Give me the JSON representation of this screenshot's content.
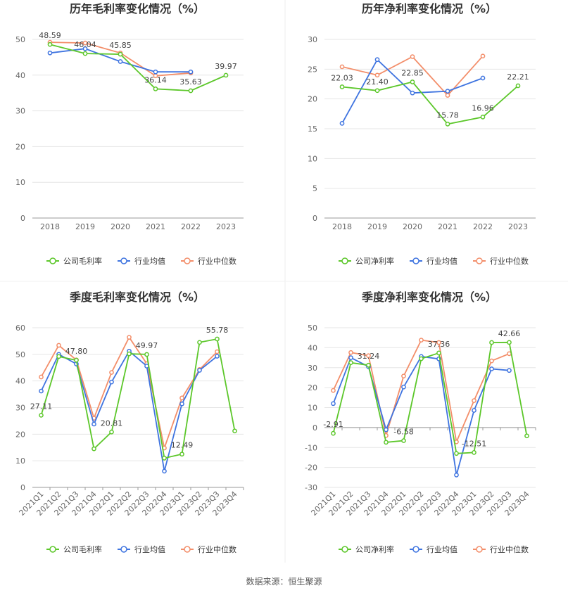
{
  "source": "数据来源：恒生聚源",
  "colors": {
    "company": "#5cc72a",
    "avg": "#3f74e0",
    "median": "#f38e6a",
    "grid": "#e6e6e6",
    "axis": "#cccccc"
  },
  "chart_data": [
    {
      "type": "line",
      "title": "历年毛利率变化情况（%）",
      "categories": [
        "2018",
        "2019",
        "2020",
        "2021",
        "2022",
        "2023"
      ],
      "ylim": [
        0,
        50
      ],
      "yticks": [
        0,
        10,
        20,
        30,
        40,
        50
      ],
      "series": [
        {
          "name": "公司毛利率",
          "color_key": "company",
          "values": [
            48.59,
            46.04,
            45.85,
            36.14,
            35.63,
            39.97
          ]
        },
        {
          "name": "行业均值",
          "color_key": "avg",
          "values": [
            46.2,
            47.4,
            43.8,
            40.9,
            40.9,
            null
          ]
        },
        {
          "name": "行业中位数",
          "color_key": "median",
          "values": [
            49.2,
            49.0,
            46.2,
            39.8,
            40.6,
            null
          ]
        }
      ],
      "data_labels": [
        {
          "index": 0,
          "text": "48.59"
        },
        {
          "index": 1,
          "text": "46.04"
        },
        {
          "index": 2,
          "text": "45.85"
        },
        {
          "index": 3,
          "text": "36.14"
        },
        {
          "index": 4,
          "text": "35.63"
        },
        {
          "index": 5,
          "text": "39.97"
        }
      ]
    },
    {
      "type": "line",
      "title": "历年净利率变化情况（%）",
      "categories": [
        "2018",
        "2019",
        "2020",
        "2021",
        "2022",
        "2023"
      ],
      "ylim": [
        0,
        30
      ],
      "yticks": [
        0,
        5,
        10,
        15,
        20,
        25,
        30
      ],
      "series": [
        {
          "name": "公司净利率",
          "color_key": "company",
          "values": [
            22.03,
            21.4,
            22.85,
            15.78,
            16.96,
            22.21
          ]
        },
        {
          "name": "行业均值",
          "color_key": "avg",
          "values": [
            15.9,
            26.6,
            21.0,
            21.3,
            23.5,
            null
          ]
        },
        {
          "name": "行业中位数",
          "color_key": "median",
          "values": [
            25.4,
            24.0,
            27.1,
            20.6,
            27.2,
            null
          ]
        }
      ],
      "data_labels": [
        {
          "index": 0,
          "text": "22.03"
        },
        {
          "index": 1,
          "text": "21.40"
        },
        {
          "index": 2,
          "text": "22.85"
        },
        {
          "index": 3,
          "text": "15.78"
        },
        {
          "index": 4,
          "text": "16.96"
        },
        {
          "index": 5,
          "text": "22.21"
        }
      ]
    },
    {
      "type": "line",
      "title": "季度毛利率变化情况（%）",
      "categories": [
        "2021Q1",
        "2021Q2",
        "2021Q3",
        "2021Q4",
        "2022Q1",
        "2022Q2",
        "2022Q3",
        "2022Q4",
        "2023Q1",
        "2023Q2",
        "2023Q3",
        "2023Q4"
      ],
      "ylim": [
        0,
        60
      ],
      "yticks": [
        0,
        10,
        20,
        30,
        40,
        50,
        60
      ],
      "series": [
        {
          "name": "公司毛利率",
          "color_key": "company",
          "values": [
            27.11,
            49.2,
            47.8,
            14.5,
            20.81,
            50.2,
            49.97,
            11.0,
            12.49,
            54.5,
            55.78,
            21.2
          ]
        },
        {
          "name": "行业均值",
          "color_key": "avg",
          "values": [
            36.2,
            50.0,
            46.4,
            23.8,
            39.6,
            51.2,
            45.6,
            6.1,
            31.4,
            44.0,
            49.3,
            null
          ]
        },
        {
          "name": "行业中位数",
          "color_key": "median",
          "values": [
            41.5,
            53.4,
            47.9,
            26.0,
            43.2,
            56.4,
            46.5,
            14.8,
            33.6,
            44.3,
            51.0,
            null
          ]
        }
      ],
      "data_labels": [
        {
          "index": 0,
          "text": "27.11"
        },
        {
          "index": 2,
          "text": "47.80"
        },
        {
          "index": 4,
          "text": "20.81"
        },
        {
          "index": 6,
          "text": "49.97"
        },
        {
          "index": 8,
          "text": "12.49"
        },
        {
          "index": 10,
          "text": "55.78"
        }
      ]
    },
    {
      "type": "line",
      "title": "季度净利率变化情况（%）",
      "categories": [
        "2021Q1",
        "2021Q2",
        "2021Q3",
        "2021Q4",
        "2022Q1",
        "2022Q2",
        "2022Q3",
        "2022Q4",
        "2023Q1",
        "2023Q2",
        "2023Q3",
        "2023Q4"
      ],
      "ylim": [
        -30,
        50
      ],
      "yticks": [
        -30,
        -20,
        -10,
        0,
        10,
        20,
        30,
        40,
        50
      ],
      "series": [
        {
          "name": "公司净利率",
          "color_key": "company",
          "values": [
            -2.91,
            32.5,
            31.24,
            -7.4,
            -6.58,
            34.5,
            37.36,
            -13.0,
            -12.51,
            42.6,
            42.66,
            -4.2
          ]
        },
        {
          "name": "行业均值",
          "color_key": "avg",
          "values": [
            12.0,
            35.0,
            30.5,
            -1.1,
            20.3,
            35.6,
            34.4,
            -23.8,
            8.6,
            29.4,
            28.6,
            null
          ]
        },
        {
          "name": "行业中位数",
          "color_key": "median",
          "values": [
            18.6,
            37.6,
            36.0,
            -4.0,
            25.8,
            43.8,
            42.6,
            -7.2,
            13.5,
            33.4,
            37.0,
            null
          ]
        }
      ],
      "data_labels": [
        {
          "index": 0,
          "text": "-2.91"
        },
        {
          "index": 2,
          "text": "31.24"
        },
        {
          "index": 4,
          "text": "-6.58"
        },
        {
          "index": 6,
          "text": "37.36"
        },
        {
          "index": 8,
          "text": "-12.51"
        },
        {
          "index": 10,
          "text": "42.66"
        }
      ]
    }
  ]
}
